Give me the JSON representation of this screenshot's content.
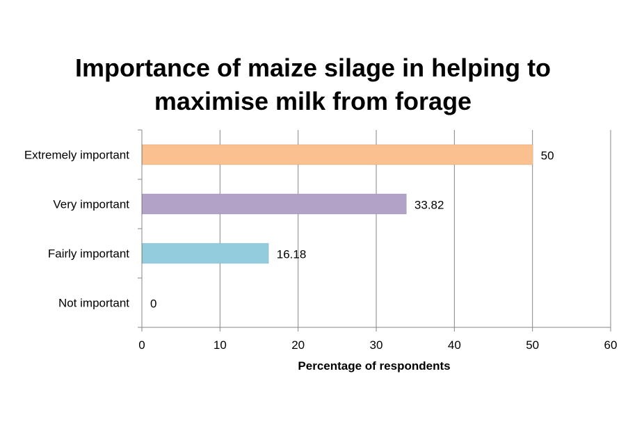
{
  "chart_data": {
    "type": "bar",
    "orientation": "horizontal",
    "title_lines": [
      "Importance of maize silage in helping to",
      "maximise milk from forage"
    ],
    "categories": [
      "Extremely important",
      "Very important",
      "Fairly important",
      "Not important"
    ],
    "values": [
      50,
      33.82,
      16.18,
      0
    ],
    "value_labels": [
      "50",
      "33.82",
      "16.18",
      "0"
    ],
    "colors": [
      "#FAC090",
      "#B3A2C7",
      "#93CDDD",
      "#FFFFFF"
    ],
    "xlabel": "Percentage of respondents",
    "ylabel": "",
    "xlim": [
      0,
      60
    ],
    "xticks": [
      "0",
      "10",
      "20",
      "30",
      "40",
      "50",
      "60"
    ],
    "grid": "vertical",
    "legend": "none"
  }
}
